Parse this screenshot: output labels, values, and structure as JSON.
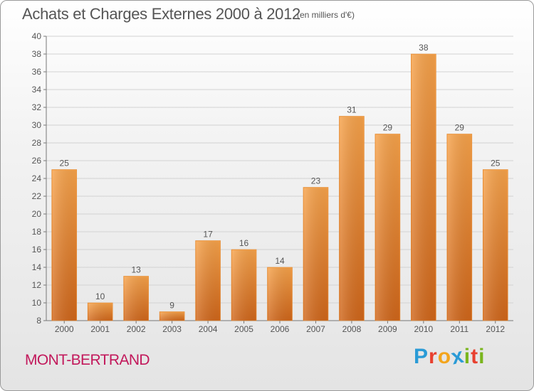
{
  "header": {
    "title": "Achats et Charges Externes 2000 à 2012",
    "subtitle": "(en milliers d'€)"
  },
  "footer": {
    "commune": "MONT-BERTRAND",
    "logo_letters": [
      "P",
      "r",
      "o",
      "x",
      "i",
      "t",
      "i"
    ],
    "logo_colors": [
      "#2a9bd6",
      "#e8402f",
      "#f3a51d",
      "#2a9bd6",
      "#7ab51d",
      "#e8402f",
      "#7ab51d"
    ]
  },
  "colors": {
    "bar": "#f0922e",
    "bar_dark": "#d96f14",
    "text": "#555555",
    "commune": "#c2185b"
  },
  "chart_data": {
    "type": "bar",
    "categories": [
      "2000",
      "2001",
      "2002",
      "2003",
      "2004",
      "2005",
      "2006",
      "2007",
      "2008",
      "2009",
      "2010",
      "2011",
      "2012"
    ],
    "values": [
      25,
      10,
      13,
      9,
      17,
      16,
      14,
      23,
      31,
      29,
      38,
      29,
      25
    ],
    "title": "Achats et Charges Externes 2000 à 2012",
    "ylim": [
      8,
      40
    ],
    "yticks": [
      8,
      10,
      12,
      14,
      16,
      18,
      20,
      22,
      24,
      26,
      28,
      30,
      32,
      34,
      36,
      38,
      40
    ],
    "grid": true,
    "legend": "none"
  }
}
